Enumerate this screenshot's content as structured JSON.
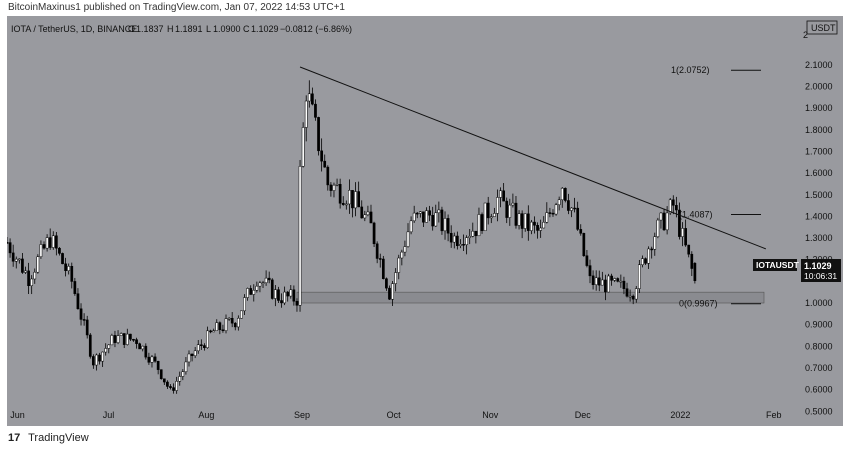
{
  "header": {
    "author": "BitcoinMaxinus1",
    "published_text": "published on TradingView.com, Jan 07, 2022 14:53 UTC+1"
  },
  "legend": {
    "symbol": "IOTA / TetherUS, 1D, BINANCE",
    "o_label": "O",
    "o_value": "1.1837",
    "h_label": "H",
    "h_value": "1.1891",
    "l_label": "L",
    "l_value": "1.0900",
    "c_label": "C",
    "c_value": "1.1029",
    "change": "−0.0812 (−6.86%)"
  },
  "price_axis": {
    "currency": "USDT",
    "ticks": [
      "2.1000",
      "2.0000",
      "1.9000",
      "1.8000",
      "1.7000",
      "1.6000",
      "1.5000",
      "1.4000",
      "1.3000",
      "1.2000",
      "1.0000",
      "0.9000",
      "0.8000",
      "0.7000",
      "0.6000",
      "0.5000"
    ],
    "top_tick": "2"
  },
  "time_axis": {
    "labels": [
      "Jun",
      "Jul",
      "Aug",
      "Sep",
      "Oct",
      "Nov",
      "Dec",
      "2022",
      "Feb"
    ]
  },
  "price_tag": {
    "symbol": "IOTAUSDT",
    "price": "1.1029",
    "countdown": "10:06:31"
  },
  "fib_levels": [
    {
      "label": "1(2.0752)",
      "value": 2.0752
    },
    {
      "label": "(1.4087)",
      "value": 1.4087
    },
    {
      "label": "0(0.9967)",
      "value": 0.9967
    }
  ],
  "footer": {
    "logo_text": "17",
    "brand": "TradingView"
  },
  "colors": {
    "background": "#999a9f",
    "up_candle": "#ffffff",
    "down_candle": "#000000",
    "support_zone": "#8a8b90",
    "price_tag_bg": "#111111"
  },
  "chart_data": {
    "type": "candlestick",
    "title": "IOTA / TetherUS, 1D, BINANCE",
    "ylim": [
      0.45,
      2.2
    ],
    "y_scale": "linear",
    "x_months": [
      "Jun",
      "Jul",
      "Aug",
      "Sep",
      "Oct",
      "Nov",
      "Dec",
      "2022",
      "Feb"
    ],
    "support_zone": [
      1.0,
      1.05
    ],
    "trendline": [
      {
        "date": "2021-09-01",
        "price": 2.09
      },
      {
        "date": "2022-01-30",
        "price": 1.25
      }
    ],
    "series": [
      {
        "date": "2021-05-29",
        "close": 1.28
      },
      {
        "date": "2021-06-05",
        "close": 1.12
      },
      {
        "date": "2021-06-12",
        "close": 1.3
      },
      {
        "date": "2021-06-19",
        "close": 1.1
      },
      {
        "date": "2021-06-26",
        "close": 0.73
      },
      {
        "date": "2021-07-03",
        "close": 0.84
      },
      {
        "date": "2021-07-10",
        "close": 0.83
      },
      {
        "date": "2021-07-17",
        "close": 0.7
      },
      {
        "date": "2021-07-21",
        "close": 0.59
      },
      {
        "date": "2021-07-28",
        "close": 0.76
      },
      {
        "date": "2021-08-04",
        "close": 0.87
      },
      {
        "date": "2021-08-11",
        "close": 0.92
      },
      {
        "date": "2021-08-18",
        "close": 1.12
      },
      {
        "date": "2021-08-25",
        "close": 1.03
      },
      {
        "date": "2021-08-31",
        "close": 1.02
      },
      {
        "date": "2021-09-01",
        "close": 1.6
      },
      {
        "date": "2021-09-03",
        "close": 1.99
      },
      {
        "date": "2021-09-10",
        "close": 1.55
      },
      {
        "date": "2021-09-17",
        "close": 1.5
      },
      {
        "date": "2021-09-24",
        "close": 1.35
      },
      {
        "date": "2021-09-30",
        "close": 1.05
      },
      {
        "date": "2021-10-07",
        "close": 1.38
      },
      {
        "date": "2021-10-14",
        "close": 1.41
      },
      {
        "date": "2021-10-21",
        "close": 1.3
      },
      {
        "date": "2021-10-28",
        "close": 1.35
      },
      {
        "date": "2021-11-04",
        "close": 1.48
      },
      {
        "date": "2021-11-11",
        "close": 1.38
      },
      {
        "date": "2021-11-18",
        "close": 1.32
      },
      {
        "date": "2021-11-25",
        "close": 1.55
      },
      {
        "date": "2021-11-29",
        "close": 1.4
      },
      {
        "date": "2021-12-04",
        "close": 1.1
      },
      {
        "date": "2021-12-11",
        "close": 1.08
      },
      {
        "date": "2021-12-18",
        "close": 1.06
      },
      {
        "date": "2021-12-24",
        "close": 1.3
      },
      {
        "date": "2021-12-31",
        "close": 1.45
      },
      {
        "date": "2022-01-04",
        "close": 1.25
      },
      {
        "date": "2022-01-07",
        "close": 1.1029
      }
    ]
  }
}
